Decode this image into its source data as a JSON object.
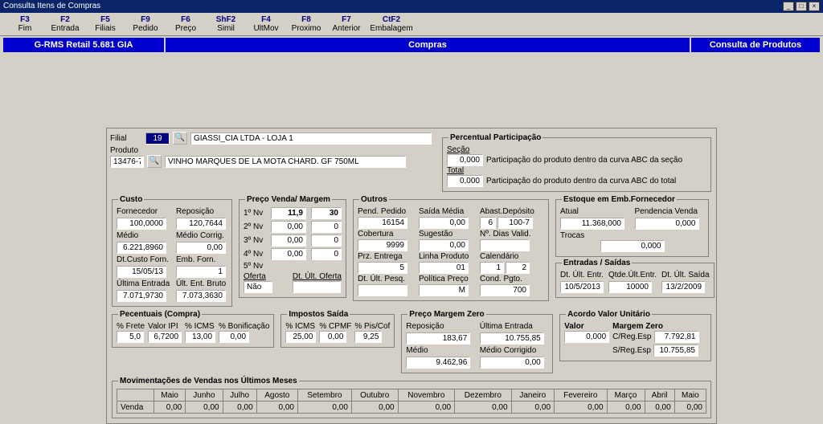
{
  "window": {
    "title": "Consulta Itens de Compras"
  },
  "fkeys": [
    {
      "key": "F3",
      "label": "Fim"
    },
    {
      "key": "F2",
      "label": "Entrada"
    },
    {
      "key": "F5",
      "label": "Filiais"
    },
    {
      "key": "F9",
      "label": "Pedido"
    },
    {
      "key": "F6",
      "label": "Preço"
    },
    {
      "key": "ShF2",
      "label": "Simil"
    },
    {
      "key": "F4",
      "label": "UltMov"
    },
    {
      "key": "F8",
      "label": "Proximo"
    },
    {
      "key": "F7",
      "label": "Anterior"
    },
    {
      "key": "CtF2",
      "label": "Embalagem"
    }
  ],
  "band": {
    "left": "G-RMS Retail 5.681 GIA",
    "mid": "Compras",
    "right": "Consulta de Produtos"
  },
  "header": {
    "filial_label": "Filial",
    "filial_code": "19",
    "filial_name": "GIASSI_CIA LTDA - LOJA 1",
    "produto_label": "Produto",
    "produto_code": "13476-7",
    "produto_name": "VINHO MARQUES DE LA MOTA CHARD. GF 750ML"
  },
  "participacao": {
    "legend": "Percentual Participação",
    "secao_label": "Seção",
    "secao_val": "0,000",
    "secao_desc": "Participação do produto dentro da curva ABC da seção",
    "total_label": "Total",
    "total_val": "0,000",
    "total_desc": "Participação do produto dentro da curva ABC do total"
  },
  "custo": {
    "legend": "Custo",
    "fornecedor_label": "Fornecedor",
    "fornecedor_val": "100,0000",
    "reposicao_label": "Reposição",
    "reposicao_val": "120,7644",
    "medio_label": "Médio",
    "medio_val": "6.221,8960",
    "medio_corrig_label": "Médio Corrig.",
    "medio_corrig_val": "0,00",
    "dtcusto_label": "Dt.Custo Forn.",
    "dtcusto_val": "15/05/13",
    "embforn_label": "Emb. Forn.",
    "embforn_val": "1",
    "ultent_label": "Última Entrada",
    "ultent_val": "7.071,9730",
    "ultentbruto_label": "Últ. Ent. Bruto",
    "ultentbruto_val": "7.073,3630"
  },
  "preco": {
    "legend": "Preço Venda/ Margem",
    "n1_label": "1º Nv",
    "n1_preco": "11,9",
    "n1_marg": "30",
    "n2_label": "2º Nv",
    "n2_preco": "0,00",
    "n2_marg": "0",
    "n3_label": "3º Nv",
    "n3_preco": "0,00",
    "n3_marg": "0",
    "n4_label": "4º Nv",
    "n4_preco": "0,00",
    "n4_marg": "0",
    "n5_label": "5º Nv",
    "oferta_label": "Oferta",
    "oferta_val": "Não",
    "dtoferta_label": "Dt. Últ. Oferta",
    "dtoferta_val": ""
  },
  "outros": {
    "legend": "Outros",
    "pendpedido_label": "Pend. Pedido",
    "pendpedido_val": "16154",
    "saidamedia_label": "Saída Média",
    "saidamedia_val": "0,00",
    "abastdep_label": "Abast.Depósito",
    "abastdep_a": "6",
    "abastdep_b": "100-7",
    "cobertura_label": "Cobertura",
    "cobertura_val": "9999",
    "sugestao_label": "Sugestão",
    "sugestao_val": "0,00",
    "diasvalid_label": "Nº. Dias Valid.",
    "diasvalid_val": "",
    "przentrega_label": "Prz. Entrega",
    "przentrega_val": "5",
    "linhaprod_label": "Linha Produto",
    "linhaprod_val": "01",
    "calendario_label": "Calendário",
    "calendario_a": "1",
    "calendario_b": "2",
    "dtultpesq_label": "Dt. Últ. Pesq.",
    "dtultpesq_val": "",
    "politicapreco_label": "Política Preço",
    "politicapreco_val": "M",
    "condpgto_label": "Cond. Pgto.",
    "condpgto_val": "700"
  },
  "estoque": {
    "legend": "Estoque em Emb.Fornecedor",
    "atual_label": "Atual",
    "atual_val": "11.368,000",
    "pendvenda_label": "Pendencia Venda",
    "pendvenda_val": "0,000",
    "trocas_label": "Trocas",
    "trocas_val": "0,000"
  },
  "entradas": {
    "legend": "Entradas / Saídas",
    "dtultentr_label": "Dt. Últ. Entr.",
    "dtultentr_val": "10/5/2013",
    "qtdeultentr_label": "Qtde.Últ.Entr.",
    "qtdeultentr_val": "10000",
    "dtultsaida_label": "Dt. Últ. Saída",
    "dtultsaida_val": "13/2/2009"
  },
  "percentuais": {
    "legend": "Pecentuais (Compra)",
    "frete_label": "% Frete",
    "frete_val": "5,0",
    "ipi_label": "Valor IPI",
    "ipi_val": "6,7200",
    "icms_label": "% ICMS",
    "icms_val": "13,00",
    "bonif_label": "% Bonificação",
    "bonif_val": "0,00"
  },
  "impostos": {
    "legend": "Impostos Saída",
    "icms_label": "% ICMS",
    "icms_val": "25,00",
    "cpmf_label": "% CPMF",
    "cpmf_val": "0,00",
    "piscof_label": "% Pis/Cof",
    "piscof_val": "9,25"
  },
  "margemzero": {
    "legend": "Preço Margem Zero",
    "repos_label": "Reposição",
    "repos_val": "183,67",
    "ultent_label": "Última Entrada",
    "ultent_val": "10.755,85",
    "medio_label": "Médio",
    "medio_val": "9.462,96",
    "mediocorr_label": "Médio Corrigido",
    "mediocorr_val": "0,00"
  },
  "acordo": {
    "legend": "Acordo Valor Unitário",
    "valor_label": "Valor",
    "valor_val": "0,000",
    "margemzero_label": "Margem Zero",
    "cregesp_label": "C/Reg.Esp",
    "cregesp_val": "7.792,81",
    "sregesp_label": "S/Reg.Esp",
    "sregesp_val": "10.755,85"
  },
  "mov": {
    "legend": "Movimentações de Vendas nos Últimos Meses",
    "months": [
      "Maio",
      "Junho",
      "Julho",
      "Agosto",
      "Setembro",
      "Outubro",
      "Novembro",
      "Dezembro",
      "Janeiro",
      "Fevereiro",
      "Março",
      "Abril",
      "Maio"
    ],
    "rowlabel": "Venda",
    "values": [
      "0,00",
      "0,00",
      "0,00",
      "0,00",
      "0,00",
      "0,00",
      "0,00",
      "0,00",
      "0,00",
      "0,00",
      "0,00",
      "0,00",
      "0,00"
    ]
  },
  "colors": {
    "titlebar": "#0a246a",
    "band": "#0000ce",
    "panel_bg": "#d4d0c8"
  }
}
